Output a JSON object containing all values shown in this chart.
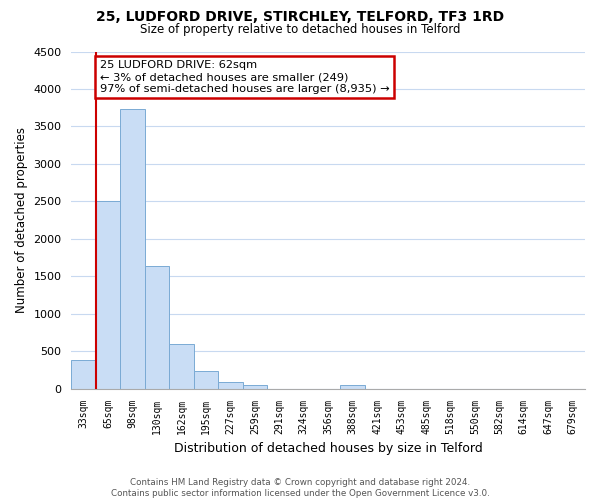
{
  "title1": "25, LUDFORD DRIVE, STIRCHLEY, TELFORD, TF3 1RD",
  "title2": "Size of property relative to detached houses in Telford",
  "xlabel": "Distribution of detached houses by size in Telford",
  "ylabel": "Number of detached properties",
  "bar_labels": [
    "33sqm",
    "65sqm",
    "98sqm",
    "130sqm",
    "162sqm",
    "195sqm",
    "227sqm",
    "259sqm",
    "291sqm",
    "324sqm",
    "356sqm",
    "388sqm",
    "421sqm",
    "453sqm",
    "485sqm",
    "518sqm",
    "550sqm",
    "582sqm",
    "614sqm",
    "647sqm",
    "679sqm"
  ],
  "bar_values": [
    380,
    2500,
    3730,
    1640,
    600,
    240,
    95,
    55,
    0,
    0,
    0,
    50,
    0,
    0,
    0,
    0,
    0,
    0,
    0,
    0,
    0
  ],
  "bar_color": "#c9ddf5",
  "bar_edge_color": "#7aaad4",
  "ylim": [
    0,
    4500
  ],
  "yticks": [
    0,
    500,
    1000,
    1500,
    2000,
    2500,
    3000,
    3500,
    4000,
    4500
  ],
  "annotation_title": "25 LUDFORD DRIVE: 62sqm",
  "annotation_line1": "← 3% of detached houses are smaller (249)",
  "annotation_line2": "97% of semi-detached houses are larger (8,935) →",
  "annotation_box_color": "#ffffff",
  "annotation_box_edgecolor": "#cc0000",
  "property_line_color": "#cc0000",
  "footnote1": "Contains HM Land Registry data © Crown copyright and database right 2024.",
  "footnote2": "Contains public sector information licensed under the Open Government Licence v3.0.",
  "bg_color": "#ffffff",
  "grid_color": "#c8d9f0"
}
